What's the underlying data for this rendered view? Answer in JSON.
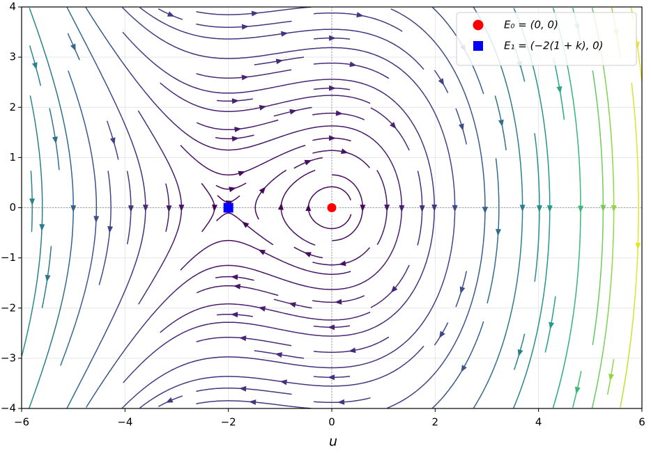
{
  "chart_data": {
    "type": "streamplot",
    "xlabel": "u",
    "xlim": [
      -6,
      6
    ],
    "ylim": [
      -4,
      4
    ],
    "xticks": [
      {
        "value": -6,
        "label": "−6"
      },
      {
        "value": -4,
        "label": "−4"
      },
      {
        "value": -2,
        "label": "−2"
      },
      0,
      2,
      4,
      6
    ],
    "yticks": [
      {
        "value": -4,
        "label": "−4"
      },
      {
        "value": -3,
        "label": "−3"
      },
      {
        "value": -2,
        "label": "−2"
      },
      {
        "value": -1,
        "label": "−1"
      },
      0,
      1,
      2,
      3,
      4
    ],
    "grid": true,
    "legend": "upper right",
    "series": [
      {
        "name": "E₀ = (0, 0)",
        "color": "#ff0000",
        "marker": "circle",
        "x": [
          0
        ],
        "values": [
          0
        ]
      },
      {
        "name": "E₁ = (−2(1 + k), 0)",
        "color": "#0000ff",
        "marker": "square",
        "x": [
          -2
        ],
        "values": [
          0
        ]
      }
    ]
  }
}
